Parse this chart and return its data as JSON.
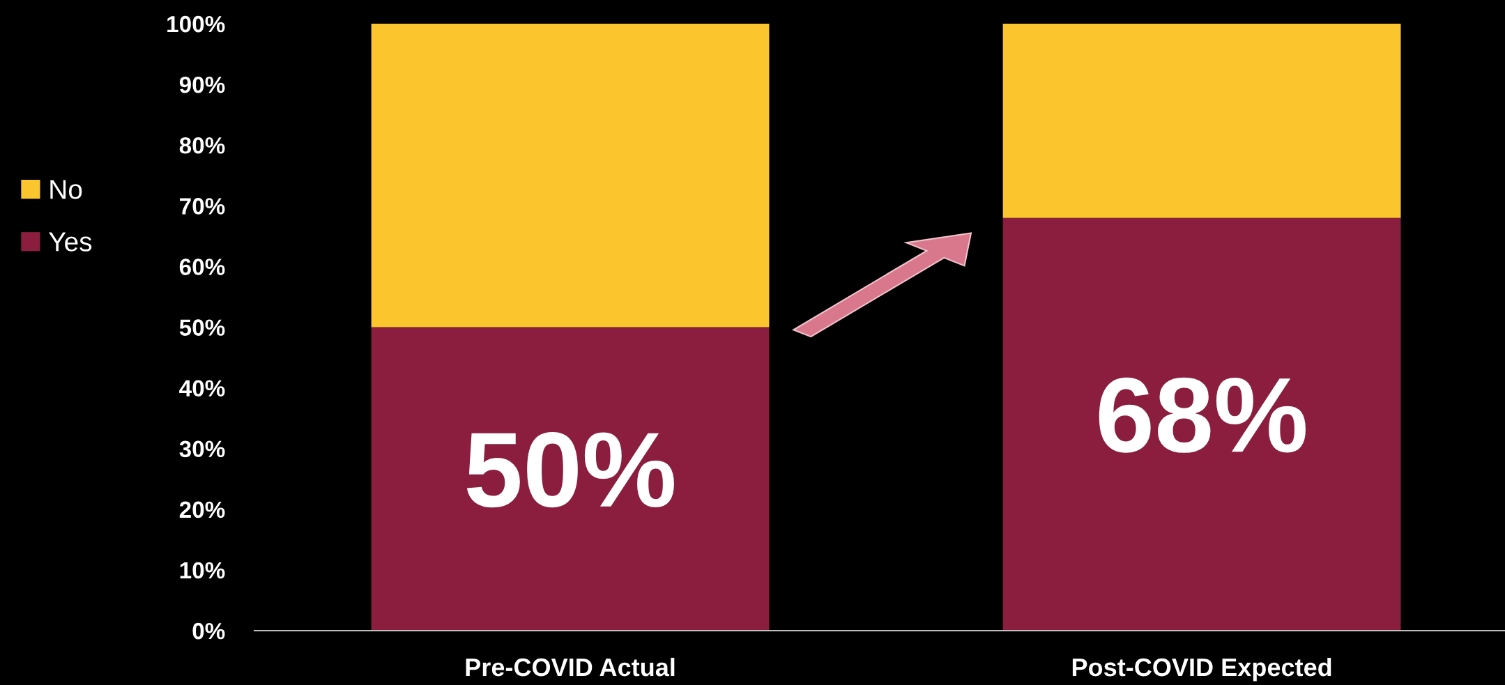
{
  "chart_data": {
    "type": "bar",
    "stacked": true,
    "categories": [
      "Pre-COVID Actual",
      "Post-COVID Expected"
    ],
    "series": [
      {
        "name": "Yes",
        "color": "#8b1e3f",
        "values": [
          50,
          68
        ],
        "value_labels": [
          "50%",
          "68%"
        ]
      },
      {
        "name": "No",
        "color": "#fbc52d",
        "values": [
          50,
          32
        ]
      }
    ],
    "ylim": [
      0,
      100
    ],
    "yticks": [
      {
        "value": 0,
        "label": "0%"
      },
      {
        "value": 10,
        "label": "10%"
      },
      {
        "value": 20,
        "label": "20%"
      },
      {
        "value": 30,
        "label": "30%"
      },
      {
        "value": 40,
        "label": "40%"
      },
      {
        "value": 50,
        "label": "50%"
      },
      {
        "value": 60,
        "label": "60%"
      },
      {
        "value": 70,
        "label": "70%"
      },
      {
        "value": 80,
        "label": "80%"
      },
      {
        "value": 90,
        "label": "90%"
      },
      {
        "value": 100,
        "label": "100%"
      }
    ],
    "grid": false,
    "legend": "left"
  }
}
